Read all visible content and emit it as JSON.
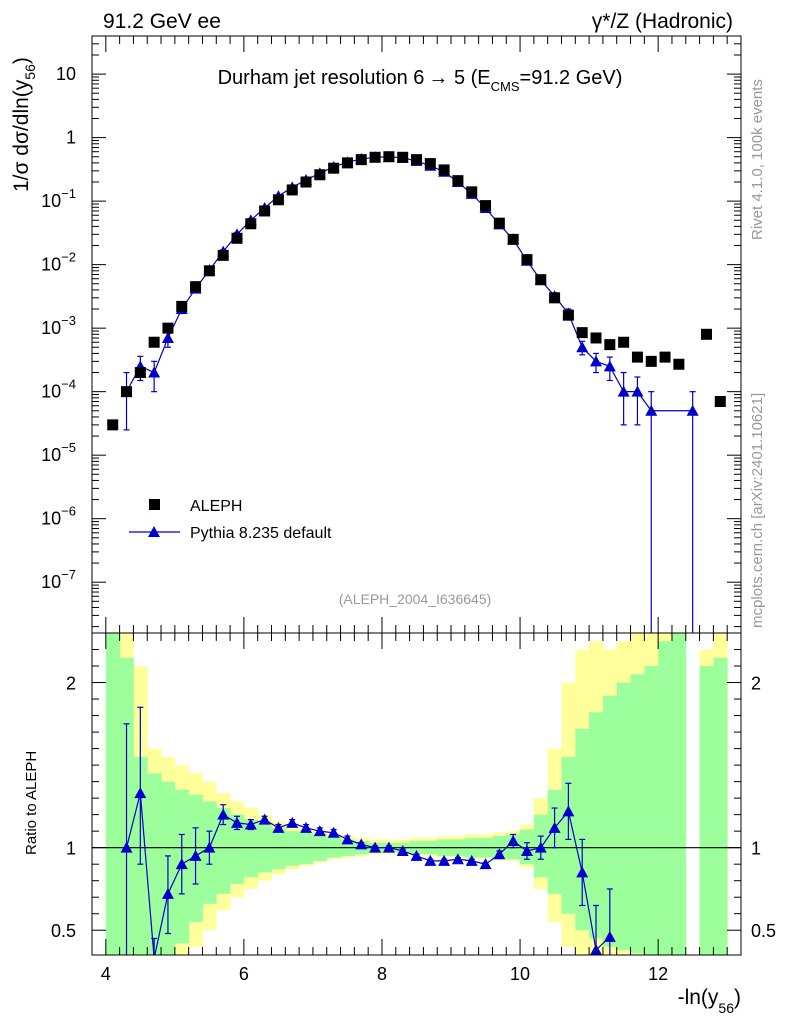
{
  "header": {
    "left": "91.2 GeV ee",
    "right": "γ*/Z (Hadronic)"
  },
  "side": {
    "rivet": "Rivet 4.1.0,  100k events",
    "mcplots": "mcplots.cern.ch [arXiv:2401.10621]"
  },
  "colors": {
    "data": "#000000",
    "mc": "#0000cc",
    "band_inner": "#9cff9c",
    "band_outer": "#ffff9c"
  },
  "chart_data": [
    {
      "type": "scatter",
      "title_main": "Durham jet resolution 6",
      "title_arrow": "→",
      "title_mid": " 5 (E",
      "title_sub": "CMS",
      "title_end": "=91.2 GeV)",
      "ylabel_main": "1/σ  dσ/dln(y",
      "ylabel_sub": "56",
      "ylabel_end": ")",
      "analysis": "(ALEPH_2004_I636645)",
      "xlim": [
        3.8,
        13.2
      ],
      "ylim_log10": [
        -7.8,
        1.6
      ],
      "yticks": [
        {
          "exp": 1,
          "label": "10"
        },
        {
          "exp": 0,
          "label": "1"
        },
        {
          "exp": -1,
          "base": "10",
          "sup": "−1"
        },
        {
          "exp": -2,
          "base": "10",
          "sup": "−2"
        },
        {
          "exp": -3,
          "base": "10",
          "sup": "−3"
        },
        {
          "exp": -4,
          "base": "10",
          "sup": "−4"
        },
        {
          "exp": -5,
          "base": "10",
          "sup": "−5"
        },
        {
          "exp": -6,
          "base": "10",
          "sup": "−6"
        },
        {
          "exp": -7,
          "base": "10",
          "sup": "−7"
        }
      ],
      "legend": [
        {
          "name": "ALEPH",
          "marker": "square"
        },
        {
          "name": "Pythia 8.235 default",
          "marker": "triangle"
        }
      ],
      "series": [
        {
          "name": "ALEPH",
          "x": [
            4.1,
            4.3,
            4.5,
            4.7,
            4.9,
            5.1,
            5.3,
            5.5,
            5.7,
            5.9,
            6.1,
            6.3,
            6.5,
            6.7,
            6.9,
            7.1,
            7.3,
            7.5,
            7.7,
            7.9,
            8.1,
            8.3,
            8.5,
            8.7,
            8.9,
            9.1,
            9.3,
            9.5,
            9.7,
            9.9,
            10.1,
            10.3,
            10.5,
            10.7,
            10.9,
            11.1,
            11.3,
            11.5,
            11.7,
            11.9,
            12.1,
            12.3,
            12.7,
            12.9
          ],
          "y": [
            3e-05,
            0.0001,
            0.0002,
            0.0006,
            0.001,
            0.0022,
            0.0045,
            0.008,
            0.014,
            0.026,
            0.044,
            0.07,
            0.105,
            0.15,
            0.2,
            0.26,
            0.33,
            0.4,
            0.45,
            0.49,
            0.5,
            0.49,
            0.45,
            0.39,
            0.31,
            0.21,
            0.14,
            0.085,
            0.045,
            0.025,
            0.012,
            0.0058,
            0.003,
            0.0016,
            0.00085,
            0.0007,
            0.00055,
            0.0006,
            0.00035,
            0.0003,
            0.00035,
            0.00027,
            0.0008,
            7e-05
          ]
        },
        {
          "name": "Pythia 8.235 default",
          "x": [
            4.3,
            4.5,
            4.7,
            4.9,
            5.1,
            5.3,
            5.5,
            5.7,
            5.9,
            6.1,
            6.3,
            6.5,
            6.7,
            6.9,
            7.1,
            7.3,
            7.5,
            7.7,
            7.9,
            8.1,
            8.3,
            8.5,
            8.7,
            8.9,
            9.1,
            9.3,
            9.5,
            9.7,
            9.9,
            10.1,
            10.3,
            10.5,
            10.7,
            10.9,
            11.1,
            11.3,
            11.5,
            11.7,
            11.9,
            12.5
          ],
          "y": [
            0.0001,
            0.00025,
            0.0002,
            0.0007,
            0.002,
            0.0042,
            0.0082,
            0.016,
            0.03,
            0.05,
            0.078,
            0.12,
            0.165,
            0.215,
            0.275,
            0.345,
            0.41,
            0.46,
            0.49,
            0.5,
            0.48,
            0.43,
            0.36,
            0.29,
            0.2,
            0.13,
            0.078,
            0.043,
            0.025,
            0.0115,
            0.0057,
            0.0032,
            0.0017,
            0.0005,
            0.0003,
            0.00025,
            0.0001,
            0.0001,
            5e-05,
            5e-05
          ],
          "ylo": [
            2.5e-05,
            0.00015,
            0.0001,
            0.0005,
            0.0017,
            0.0037,
            0.0075,
            0.015,
            0.028,
            0.047,
            0.075,
            0.116,
            0.16,
            0.21,
            0.27,
            0.34,
            0.405,
            0.455,
            0.485,
            0.495,
            0.475,
            0.425,
            0.355,
            0.285,
            0.196,
            0.126,
            0.075,
            0.041,
            0.0235,
            0.0107,
            0.0052,
            0.0028,
            0.0014,
            0.00038,
            0.0002,
            0.00015,
            3e-05,
            3e-05,
            1e-08,
            1e-08
          ],
          "yhi": [
            0.0002,
            0.00036,
            0.0003,
            0.0009,
            0.0023,
            0.0047,
            0.009,
            0.017,
            0.032,
            0.053,
            0.081,
            0.124,
            0.17,
            0.22,
            0.28,
            0.35,
            0.415,
            0.465,
            0.495,
            0.505,
            0.485,
            0.435,
            0.365,
            0.295,
            0.204,
            0.134,
            0.081,
            0.045,
            0.0265,
            0.0123,
            0.0062,
            0.0036,
            0.002,
            0.00062,
            0.0004,
            0.00035,
            0.0002,
            0.00017,
            0.0001,
            0.0001
          ]
        }
      ]
    },
    {
      "type": "line",
      "ylabel": "Ratio to ALEPH",
      "xlabel_main": "-ln(y",
      "xlabel_sub": "56",
      "xlabel_end": ")",
      "xlim": [
        3.8,
        13.2
      ],
      "ylim": [
        0.35,
        2.3
      ],
      "xticks": [
        4,
        6,
        8,
        10,
        12
      ],
      "yticks": [
        0.5,
        1,
        2
      ],
      "bands": {
        "edges": [
          4.0,
          4.2,
          4.4,
          4.6,
          4.8,
          5.0,
          5.2,
          5.4,
          5.6,
          5.8,
          6.0,
          6.2,
          6.4,
          6.6,
          6.8,
          7.0,
          7.2,
          7.4,
          7.6,
          7.8,
          8.0,
          8.2,
          8.4,
          8.6,
          8.8,
          9.0,
          9.2,
          9.4,
          9.6,
          9.8,
          10.0,
          10.2,
          10.4,
          10.6,
          10.8,
          11.0,
          11.2,
          11.4,
          11.6,
          11.8,
          12.0,
          12.2,
          12.4,
          12.6,
          12.8,
          13.0
        ],
        "inner_lo": [
          0.35,
          0.35,
          0.35,
          0.35,
          0.35,
          0.42,
          0.55,
          0.66,
          0.72,
          0.78,
          0.82,
          0.85,
          0.87,
          0.89,
          0.9,
          0.92,
          0.94,
          0.95,
          0.96,
          0.97,
          0.97,
          0.97,
          0.96,
          0.96,
          0.95,
          0.95,
          0.94,
          0.94,
          0.93,
          0.93,
          0.9,
          0.82,
          0.72,
          0.6,
          0.5,
          0.45,
          0.4,
          0.38,
          0.36,
          0.35,
          0.35,
          0.35,
          null,
          0.35,
          0.35
        ],
        "inner_hi": [
          2.3,
          2.15,
          1.55,
          1.45,
          1.4,
          1.35,
          1.32,
          1.28,
          1.24,
          1.2,
          1.17,
          1.14,
          1.12,
          1.1,
          1.09,
          1.08,
          1.06,
          1.05,
          1.04,
          1.03,
          1.03,
          1.03,
          1.04,
          1.04,
          1.05,
          1.05,
          1.06,
          1.06,
          1.07,
          1.08,
          1.11,
          1.2,
          1.35,
          1.55,
          1.72,
          1.82,
          1.92,
          2.0,
          2.05,
          2.1,
          2.25,
          2.3,
          null,
          2.1,
          2.15
        ],
        "outer_lo": [
          0.35,
          0.35,
          0.35,
          0.35,
          0.35,
          0.35,
          0.4,
          0.5,
          0.62,
          0.7,
          0.75,
          0.8,
          0.84,
          0.87,
          0.89,
          0.91,
          0.93,
          0.94,
          0.95,
          0.96,
          0.96,
          0.96,
          0.95,
          0.95,
          0.94,
          0.94,
          0.93,
          0.93,
          0.92,
          0.92,
          0.88,
          0.75,
          0.55,
          0.4,
          0.35,
          0.35,
          0.35,
          0.35,
          0.35,
          0.35,
          0.35,
          0.35,
          null,
          0.35,
          0.35
        ],
        "outer_hi": [
          2.3,
          2.3,
          2.1,
          1.6,
          1.55,
          1.5,
          1.45,
          1.4,
          1.33,
          1.28,
          1.24,
          1.2,
          1.16,
          1.13,
          1.11,
          1.1,
          1.08,
          1.07,
          1.06,
          1.05,
          1.05,
          1.05,
          1.06,
          1.06,
          1.07,
          1.07,
          1.08,
          1.08,
          1.09,
          1.1,
          1.14,
          1.3,
          1.6,
          2.0,
          2.2,
          2.25,
          2.2,
          2.25,
          2.3,
          2.3,
          2.3,
          2.3,
          null,
          2.2,
          2.3
        ]
      },
      "series": [
        {
          "name": "Pythia 8.235 default",
          "x": [
            4.3,
            4.5,
            4.7,
            4.9,
            5.1,
            5.3,
            5.5,
            5.7,
            5.9,
            6.1,
            6.3,
            6.5,
            6.7,
            6.9,
            7.1,
            7.3,
            7.5,
            7.7,
            7.9,
            8.1,
            8.3,
            8.5,
            8.7,
            8.9,
            9.1,
            9.3,
            9.5,
            9.7,
            9.9,
            10.1,
            10.3,
            10.5,
            10.7,
            10.9,
            11.1,
            11.3
          ],
          "y": [
            1.0,
            1.33,
            0.33,
            0.72,
            0.9,
            0.95,
            1.0,
            1.2,
            1.15,
            1.14,
            1.17,
            1.12,
            1.15,
            1.12,
            1.1,
            1.09,
            1.05,
            1.02,
            1.0,
            1.0,
            0.98,
            0.95,
            0.92,
            0.92,
            0.93,
            0.92,
            0.9,
            0.96,
            1.04,
            0.98,
            1.0,
            1.12,
            1.22,
            0.85,
            0.38,
            0.46
          ],
          "ylo": [
            0.2,
            0.9,
            0.2,
            0.48,
            0.72,
            0.78,
            0.9,
            1.14,
            1.11,
            1.11,
            1.15,
            1.1,
            1.13,
            1.1,
            1.08,
            1.07,
            1.03,
            1.01,
            0.99,
            0.99,
            0.97,
            0.94,
            0.91,
            0.91,
            0.92,
            0.91,
            0.89,
            0.94,
            1.0,
            0.93,
            0.93,
            1.0,
            1.05,
            0.65,
            0.2,
            0.2
          ],
          "yhi": [
            1.75,
            1.85,
            0.45,
            0.95,
            1.08,
            1.12,
            1.1,
            1.26,
            1.19,
            1.17,
            1.19,
            1.14,
            1.17,
            1.14,
            1.12,
            1.11,
            1.07,
            1.03,
            1.01,
            1.01,
            0.99,
            0.96,
            0.93,
            0.93,
            0.94,
            0.93,
            0.91,
            0.98,
            1.08,
            1.03,
            1.07,
            1.24,
            1.39,
            1.05,
            0.65,
            0.75
          ]
        }
      ]
    }
  ]
}
